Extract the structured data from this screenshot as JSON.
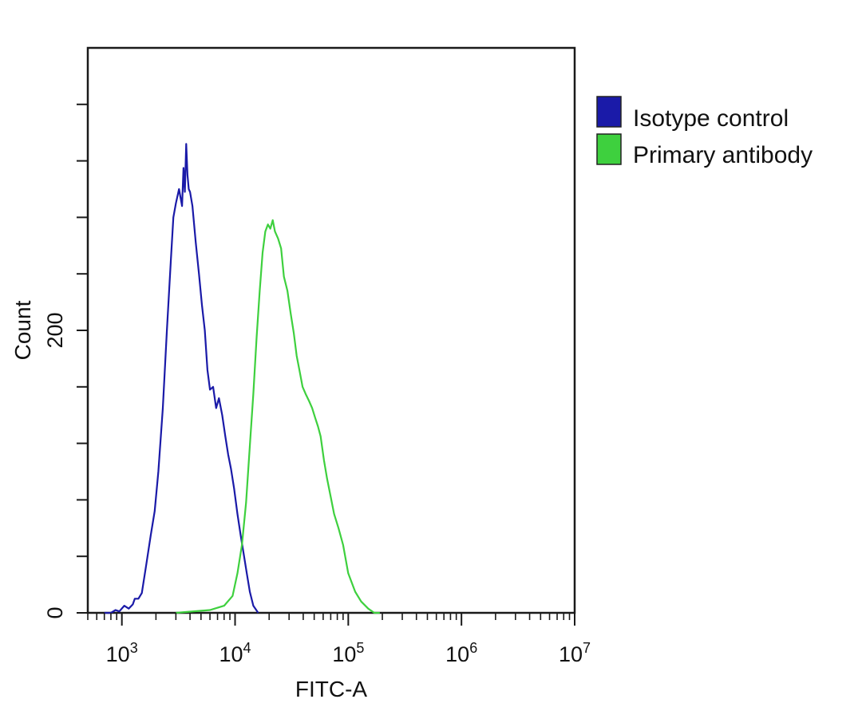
{
  "chart_data": {
    "type": "line",
    "title": "",
    "xlabel": "FITC-A",
    "ylabel": "Count",
    "x_scale": "log",
    "xlim": [
      500,
      10000000
    ],
    "ylim": [
      0,
      400
    ],
    "grid": false,
    "legend_position": "right",
    "x_ticks": [
      {
        "value": 1000,
        "base": "10",
        "exp": "3"
      },
      {
        "value": 10000,
        "base": "10",
        "exp": "4"
      },
      {
        "value": 100000,
        "base": "10",
        "exp": "5"
      },
      {
        "value": 1000000,
        "base": "10",
        "exp": "6"
      },
      {
        "value": 10000000,
        "base": "10",
        "exp": "7"
      }
    ],
    "y_tick_values": [
      0,
      40,
      80,
      120,
      160,
      200,
      240,
      280,
      320,
      360
    ],
    "y_tick_labels": [
      {
        "value": 0,
        "label": "0"
      },
      {
        "value": 200,
        "label": "200"
      }
    ],
    "series": [
      {
        "name": "Isotype control",
        "color": "#1a1aa8",
        "x": [
          700,
          800,
          880,
          950,
          1050,
          1150,
          1250,
          1300,
          1400,
          1500,
          1650,
          1800,
          1950,
          2100,
          2300,
          2500,
          2700,
          2850,
          3000,
          3200,
          3400,
          3500,
          3600,
          3700,
          3800,
          3900,
          4000,
          4200,
          4500,
          4800,
          5100,
          5400,
          5700,
          6000,
          6400,
          6800,
          7200,
          7700,
          8200,
          8700,
          9200,
          9800,
          10500,
          11200,
          12000,
          12700,
          13500,
          14500,
          16000
        ],
        "y": [
          0,
          0,
          2,
          1,
          5,
          3,
          6,
          10,
          10,
          14,
          35,
          55,
          72,
          100,
          145,
          200,
          248,
          280,
          290,
          300,
          288,
          315,
          298,
          332,
          310,
          300,
          298,
          288,
          262,
          240,
          218,
          200,
          172,
          158,
          160,
          145,
          152,
          140,
          125,
          112,
          102,
          88,
          70,
          55,
          40,
          28,
          15,
          5,
          0
        ]
      },
      {
        "name": "Primary antibody",
        "color": "#3ed03e",
        "x": [
          3000,
          6000,
          8000,
          9500,
          10500,
          11500,
          12500,
          13500,
          14500,
          15500,
          16500,
          17500,
          18500,
          19500,
          20500,
          21500,
          22500,
          24000,
          25500,
          27000,
          29000,
          31000,
          33000,
          35000,
          37000,
          39500,
          42000,
          45000,
          48000,
          51000,
          54000,
          57000,
          61000,
          65000,
          70000,
          75000,
          82000,
          90000,
          100000,
          115000,
          130000,
          150000,
          170000,
          190000
        ],
        "y": [
          0,
          2,
          5,
          12,
          28,
          48,
          78,
          118,
          155,
          195,
          228,
          255,
          270,
          275,
          272,
          278,
          270,
          265,
          258,
          238,
          228,
          212,
          198,
          182,
          172,
          160,
          155,
          150,
          145,
          138,
          132,
          125,
          108,
          95,
          82,
          70,
          60,
          48,
          28,
          15,
          8,
          3,
          0,
          0
        ]
      }
    ]
  }
}
